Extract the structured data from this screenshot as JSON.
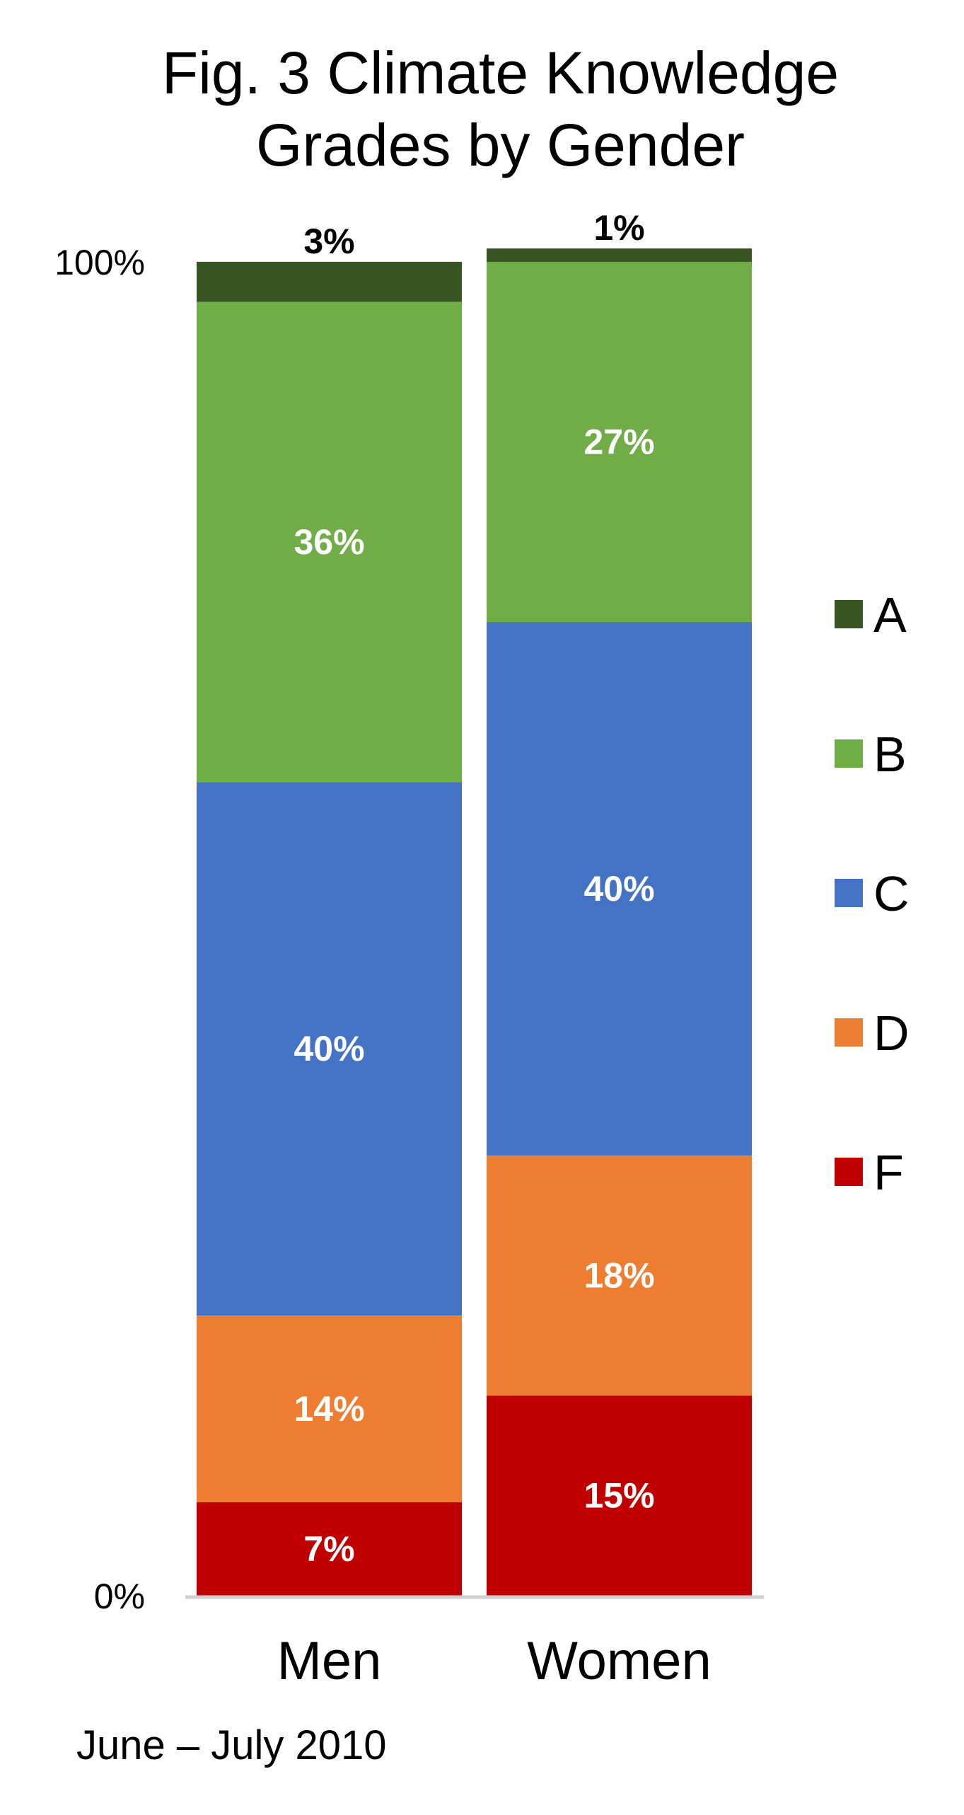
{
  "chart_data": {
    "type": "bar",
    "stacked": true,
    "title_lines": [
      "Fig. 3 Climate Knowledge",
      "Grades by Gender"
    ],
    "categories": [
      "Men",
      "Women"
    ],
    "series": [
      {
        "name": "F",
        "values": [
          7,
          15
        ],
        "color": "#C00000",
        "labels": [
          "7%",
          "15%"
        ]
      },
      {
        "name": "D",
        "values": [
          14,
          18
        ],
        "color": "#ED7D31",
        "labels": [
          "14%",
          "18%"
        ]
      },
      {
        "name": "C",
        "values": [
          40,
          40
        ],
        "color": "#4472C4",
        "labels": [
          "40%",
          "40%"
        ]
      },
      {
        "name": "B",
        "values": [
          36,
          27
        ],
        "color": "#70AD47",
        "labels": [
          "36%",
          "27%"
        ]
      },
      {
        "name": "A",
        "values": [
          3,
          1
        ],
        "color": "#375623",
        "labels": [
          "3%",
          "1%"
        ]
      }
    ],
    "legend_order": [
      "A",
      "B",
      "C",
      "D",
      "F"
    ],
    "legend_position": "right",
    "y_ticks": [
      {
        "value": 0,
        "label": "0%"
      },
      {
        "value": 100,
        "label": "100%"
      }
    ],
    "ylim": [
      0,
      100
    ],
    "grid": false,
    "label_colors": {
      "inside": "#FFFFFF",
      "outside": "#000000"
    },
    "axis_color": "#D0D0D0"
  },
  "footnote": "June – July 2010"
}
